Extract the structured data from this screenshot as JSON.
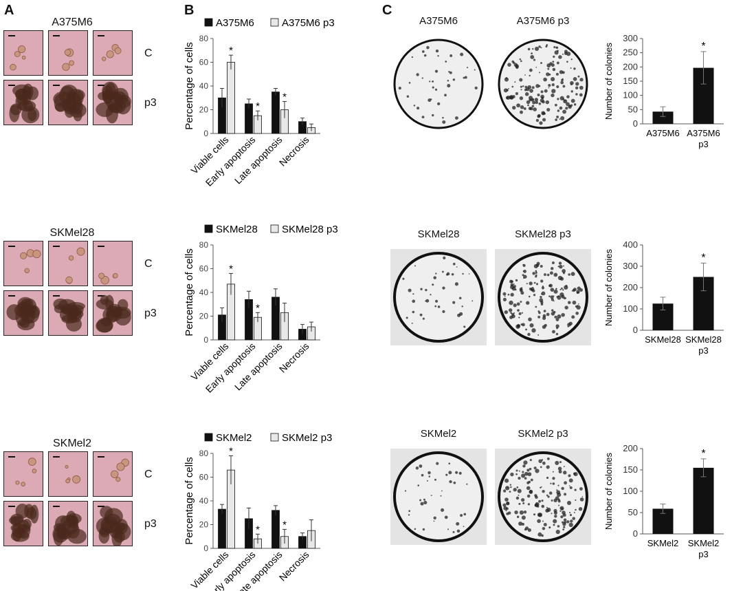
{
  "panels": {
    "A": "A",
    "B": "B",
    "C": "C"
  },
  "rows": [
    {
      "cell_line": "A375M6",
      "condition_labels": [
        "C",
        "p3"
      ],
      "apoptosis_chart": {
        "legend": [
          "A375M6",
          "A375M6 p3"
        ],
        "ylabel": "Percentage of cells",
        "ylim": [
          0,
          80
        ],
        "yticks": [
          0,
          20,
          40,
          60,
          80
        ],
        "categories": [
          "Viable cells",
          "Early apoptosis",
          "Late apoptosis",
          "Necrosis"
        ],
        "series": [
          {
            "name": "A375M6",
            "values": [
              30,
              25,
              35,
              10
            ],
            "errors": [
              8,
              4,
              3,
              3
            ]
          },
          {
            "name": "A375M6 p3",
            "values": [
              60,
              15,
              20,
              5
            ],
            "errors": [
              6,
              4,
              7,
              3
            ]
          }
        ],
        "stars": [
          [
            1,
            0
          ],
          [
            1,
            1
          ],
          [
            1,
            2
          ]
        ]
      },
      "dish_labels": [
        "A375M6",
        "A375M6 p3"
      ],
      "colony_chart": {
        "ylabel": "Number of colonies",
        "ylim": [
          0,
          300
        ],
        "yticks": [
          0,
          50,
          100,
          150,
          200,
          250,
          300
        ],
        "categories": [
          [
            "A375M6"
          ],
          [
            "A375M6",
            "p3"
          ]
        ],
        "values": [
          43,
          197
        ],
        "errors": [
          17,
          57
        ],
        "stars": [
          1
        ]
      }
    },
    {
      "cell_line": "SKMel28",
      "condition_labels": [
        "C",
        "p3"
      ],
      "apoptosis_chart": {
        "legend": [
          "SKMel28",
          "SKMel28 p3"
        ],
        "ylabel": "Percentage of cells",
        "ylim": [
          0,
          80
        ],
        "yticks": [
          0,
          20,
          40,
          60,
          80
        ],
        "categories": [
          "Viable cells",
          "Early apoptosis",
          "Late apoptosis",
          "Necrosis"
        ],
        "series": [
          {
            "name": "SKMel28",
            "values": [
              21,
              34,
              36,
              9
            ],
            "errors": [
              6,
              7,
              7,
              4
            ]
          },
          {
            "name": "SKMel28 p3",
            "values": [
              47,
              19,
              23,
              11
            ],
            "errors": [
              9,
              4,
              8,
              4
            ]
          }
        ],
        "stars": [
          [
            1,
            0
          ],
          [
            1,
            1
          ]
        ]
      },
      "dish_labels": [
        "SKMel28",
        "SKMel28 p3"
      ],
      "colony_chart": {
        "ylabel": "Number of colonies",
        "ylim": [
          0,
          400
        ],
        "yticks": [
          0,
          100,
          200,
          300,
          400
        ],
        "categories": [
          [
            "SKMel28"
          ],
          [
            "SKMel28",
            "p3"
          ]
        ],
        "values": [
          125,
          250
        ],
        "errors": [
          30,
          65
        ],
        "stars": [
          1
        ]
      }
    },
    {
      "cell_line": "SKMel2",
      "condition_labels": [
        "C",
        "p3"
      ],
      "apoptosis_chart": {
        "legend": [
          "SKMel2",
          "SKMel2 p3"
        ],
        "ylabel": "Percentage of cells",
        "ylim": [
          0,
          80
        ],
        "yticks": [
          0,
          20,
          40,
          60,
          80
        ],
        "categories": [
          "Viable cells",
          "Early apoptosis",
          "Late apoptosis",
          "Necrosis"
        ],
        "series": [
          {
            "name": "SKMel2",
            "values": [
              33,
              25,
              32,
              10
            ],
            "errors": [
              4,
              9,
              4,
              3
            ]
          },
          {
            "name": "SKMel2 p3",
            "values": [
              66,
              8,
              10,
              15
            ],
            "errors": [
              12,
              4,
              6,
              9
            ]
          }
        ],
        "stars": [
          [
            1,
            0
          ],
          [
            1,
            1
          ],
          [
            1,
            2
          ]
        ]
      },
      "dish_labels": [
        "SKMel2",
        "SKMel2 p3"
      ],
      "colony_chart": {
        "ylabel": "Number of colonies",
        "ylim": [
          0,
          200
        ],
        "yticks": [
          0,
          50,
          100,
          150,
          200
        ],
        "categories": [
          [
            "SKMel2"
          ],
          [
            "SKMel2",
            "p3"
          ]
        ],
        "values": [
          59,
          155
        ],
        "errors": [
          11,
          21
        ],
        "stars": [
          1
        ]
      }
    }
  ],
  "significance_mark": "*",
  "colors": {
    "control_bar": "#111111",
    "p3_bar": "#e8e8e8",
    "micro_bg": "#dcaab4",
    "dish_bg": "#efefef"
  }
}
